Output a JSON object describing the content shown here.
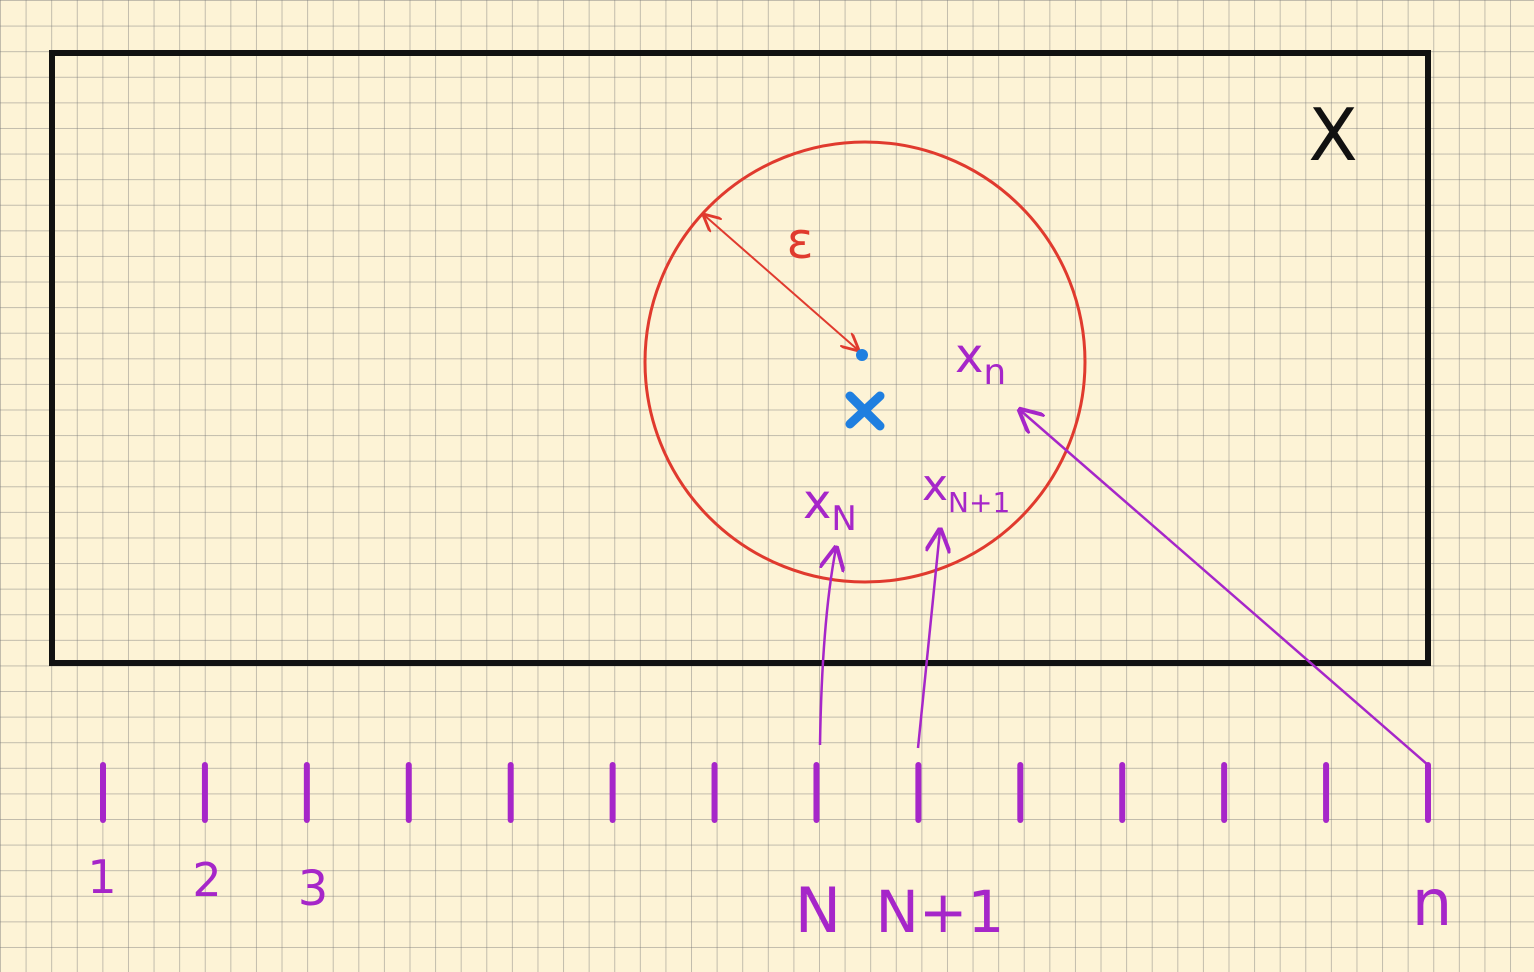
{
  "space_label": "X",
  "epsilon_label": "ε",
  "points": {
    "x_n": {
      "base": "x",
      "sub": "n"
    },
    "x_N": {
      "base": "x",
      "sub": "N"
    },
    "x_N1": {
      "base": "x",
      "sub": "N+1"
    }
  },
  "index_labels": {
    "first": "1",
    "second": "2",
    "third": "3",
    "N": "N",
    "N1": "N+1",
    "n": "n"
  },
  "tick_count": 14,
  "colors": {
    "background": "#fdf3d6",
    "grid": "#8a8a8a",
    "set_border": "#111111",
    "ball": "#e03a2e",
    "sequence": "#a626c9",
    "limit": "#1f7fe0"
  }
}
